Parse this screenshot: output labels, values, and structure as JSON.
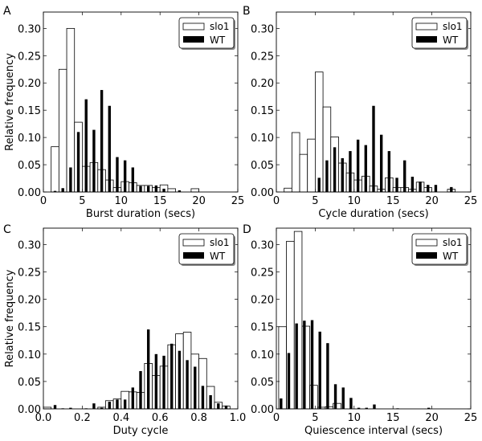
{
  "figure": {
    "ylabel": "Relative frequency",
    "legend": {
      "series": [
        "slo1",
        "WT"
      ],
      "placement": "top-right"
    }
  },
  "chart_data": [
    {
      "type": "bar",
      "panel": "A",
      "xlabel": "Burst duration (secs)",
      "ylabel": "Relative frequency",
      "xlim": [
        0,
        25
      ],
      "ylim": [
        0,
        0.33
      ],
      "xticks": [
        "0",
        "5",
        "10",
        "15",
        "20",
        "25"
      ],
      "xtick_values": [
        0,
        5,
        10,
        15,
        20,
        25
      ],
      "yticks": [
        "0.00",
        "0.05",
        "0.10",
        "0.15",
        "0.20",
        "0.25",
        "0.30"
      ],
      "ytick_values": [
        0,
        0.05,
        0.1,
        0.15,
        0.2,
        0.25,
        0.3
      ],
      "bin_width": 1,
      "series": [
        {
          "name": "slo1",
          "style": "open",
          "bin_starts": [
            1,
            2,
            3,
            4,
            5,
            6,
            7,
            8,
            9,
            10,
            11,
            12,
            13,
            14,
            15,
            16,
            17,
            18,
            19
          ],
          "values": [
            0.083,
            0.225,
            0.3,
            0.128,
            0.047,
            0.054,
            0.041,
            0.022,
            0.008,
            0.019,
            0.017,
            0.012,
            0.012,
            0.008,
            0.013,
            0.006,
            0,
            0,
            0.006
          ]
        },
        {
          "name": "WT",
          "style": "filled",
          "centers": [
            1.5,
            2.5,
            3.5,
            4.5,
            5.5,
            6.5,
            7.5,
            8.5,
            9.5,
            10.5,
            11.5,
            12.5,
            13.5,
            14.5,
            15.5,
            16.5,
            17.5
          ],
          "values": [
            0.002,
            0.007,
            0.045,
            0.11,
            0.17,
            0.114,
            0.187,
            0.158,
            0.064,
            0.058,
            0.045,
            0.011,
            0.011,
            0.012,
            0.006,
            0,
            0.003
          ]
        }
      ]
    },
    {
      "type": "bar",
      "panel": "B",
      "xlabel": "Cycle duration (secs)",
      "ylabel": "",
      "xlim": [
        0,
        25
      ],
      "ylim": [
        0,
        0.33
      ],
      "xticks": [
        "0",
        "5",
        "10",
        "15",
        "20",
        "25"
      ],
      "xtick_values": [
        0,
        5,
        10,
        15,
        20,
        25
      ],
      "yticks": [
        "0.00",
        "0.05",
        "0.10",
        "0.15",
        "0.20",
        "0.25",
        "0.30"
      ],
      "ytick_values": [
        0,
        0.05,
        0.1,
        0.15,
        0.2,
        0.25,
        0.3
      ],
      "bin_width": 1,
      "series": [
        {
          "name": "slo1",
          "style": "open",
          "bin_starts": [
            1,
            2,
            3,
            4,
            5,
            6,
            7,
            8,
            9,
            10,
            11,
            12,
            13,
            14,
            15,
            16,
            17,
            18,
            19,
            20,
            21,
            22
          ],
          "values": [
            0.007,
            0.109,
            0.069,
            0.097,
            0.22,
            0.156,
            0.101,
            0.053,
            0.035,
            0.022,
            0.029,
            0.011,
            0.005,
            0.026,
            0.008,
            0.008,
            0.005,
            0.018,
            0.008,
            0,
            0,
            0.005
          ]
        },
        {
          "name": "WT",
          "style": "filled",
          "centers": [
            5.5,
            6.5,
            7.5,
            8.5,
            9.5,
            10.5,
            11.5,
            12.5,
            13.5,
            14.5,
            15.5,
            16.5,
            17.5,
            18.5,
            19.5,
            20.5,
            21.5,
            22.5
          ],
          "values": [
            0.026,
            0.058,
            0.082,
            0.062,
            0.075,
            0.096,
            0.086,
            0.158,
            0.105,
            0.075,
            0.026,
            0.058,
            0.028,
            0.019,
            0.013,
            0.013,
            0,
            0.009
          ]
        }
      ]
    },
    {
      "type": "bar",
      "panel": "C",
      "xlabel": "Duty cycle",
      "ylabel": "Relative frequency",
      "xlim": [
        0,
        1.0
      ],
      "ylim": [
        0,
        0.33
      ],
      "xticks": [
        "0.0",
        "0.2",
        "0.4",
        "0.6",
        "0.8",
        "1.0"
      ],
      "xtick_values": [
        0,
        0.2,
        0.4,
        0.6,
        0.8,
        1.0
      ],
      "yticks": [
        "0.00",
        "0.05",
        "0.10",
        "0.15",
        "0.20",
        "0.25",
        "0.30"
      ],
      "ytick_values": [
        0,
        0.05,
        0.1,
        0.15,
        0.2,
        0.25,
        0.3
      ],
      "bin_width": 0.04,
      "series": [
        {
          "name": "slo1",
          "style": "open",
          "bin_starts": [
            0.0,
            0.04,
            0.08,
            0.12,
            0.16,
            0.2,
            0.24,
            0.28,
            0.32,
            0.36,
            0.4,
            0.44,
            0.48,
            0.52,
            0.56,
            0.6,
            0.64,
            0.68,
            0.72,
            0.76,
            0.8,
            0.84,
            0.88,
            0.92
          ],
          "values": [
            0.003,
            0,
            0,
            0,
            0,
            0,
            0,
            0.003,
            0.015,
            0.018,
            0.032,
            0.031,
            0.03,
            0.083,
            0.061,
            0.078,
            0.117,
            0.137,
            0.14,
            0.1,
            0.092,
            0.041,
            0.012,
            0.005
          ]
        },
        {
          "name": "WT",
          "style": "filled",
          "centers": [
            0.06,
            0.1,
            0.14,
            0.22,
            0.26,
            0.3,
            0.34,
            0.38,
            0.42,
            0.46,
            0.5,
            0.54,
            0.58,
            0.62,
            0.66,
            0.7,
            0.74,
            0.78,
            0.82,
            0.86,
            0.9,
            0.94
          ],
          "values": [
            0.007,
            0.001,
            0.002,
            0.001,
            0.01,
            0.002,
            0.013,
            0.017,
            0.017,
            0.039,
            0.069,
            0.145,
            0.1,
            0.097,
            0.119,
            0.106,
            0.089,
            0.077,
            0.042,
            0.025,
            0.01,
            0.006
          ]
        }
      ]
    },
    {
      "type": "bar",
      "panel": "D",
      "xlabel": "Quiescence interval (secs)",
      "ylabel": "",
      "xlim": [
        0,
        25
      ],
      "ylim": [
        0,
        0.33
      ],
      "xticks": [
        "0",
        "5",
        "10",
        "15",
        "20",
        "25"
      ],
      "xtick_values": [
        0,
        5,
        10,
        15,
        20,
        25
      ],
      "yticks": [
        "0.00",
        "0.05",
        "0.10",
        "0.15",
        "0.20",
        "0.25",
        "0.30"
      ],
      "ytick_values": [
        0,
        0.05,
        0.1,
        0.15,
        0.2,
        0.25,
        0.3
      ],
      "bin_width": 1,
      "series": [
        {
          "name": "slo1",
          "style": "open",
          "bin_starts": [
            0.3,
            1.3,
            2.3,
            3.3,
            4.3,
            5.3,
            6.3,
            7.3
          ],
          "values": [
            0.15,
            0.306,
            0.324,
            0.151,
            0.043,
            0.003,
            0.004,
            0.01
          ]
        },
        {
          "name": "WT",
          "style": "filled",
          "centers": [
            0.6,
            1.6,
            2.6,
            3.6,
            4.6,
            5.6,
            6.6,
            7.6,
            8.6,
            9.6,
            10.6,
            11.6,
            12.6,
            15.6,
            19.6
          ],
          "values": [
            0.019,
            0.102,
            0.156,
            0.161,
            0.162,
            0.141,
            0.12,
            0.045,
            0.039,
            0.02,
            0.002,
            0.002,
            0.008,
            0.001,
            0.002
          ]
        }
      ]
    }
  ]
}
